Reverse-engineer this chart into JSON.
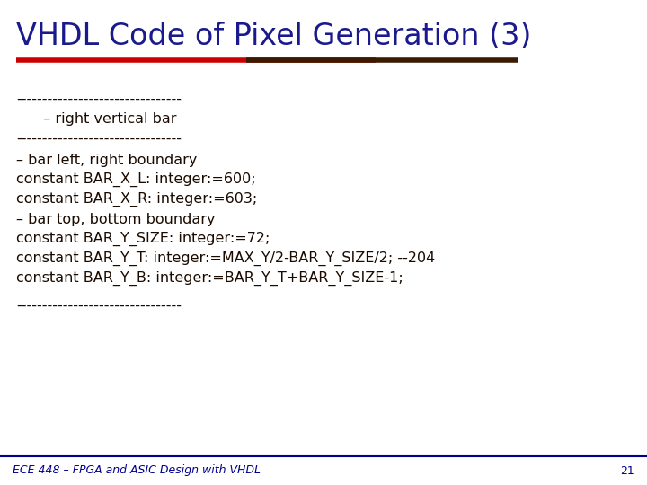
{
  "title": "VHDL Code of Pixel Generation (3)",
  "title_color": "#1a1a8c",
  "title_fontsize": 24,
  "bg_color": "#ffffff",
  "red_bar_color": "#cc0000",
  "dark_bar_color": "#3a1a00",
  "footer_line_color": "#00008b",
  "footer_text": "ECE 448 – FPGA and ASIC Design with VHDL",
  "footer_page": "21",
  "footer_color": "#00008b",
  "footer_fontsize": 9,
  "code_color": "#1a0a00",
  "code_fontsize": 11.5,
  "dash_line1": "--------------------------------",
  "comment1": "  – right vertical bar",
  "dash_line2": "--------------------------------",
  "comment2": "– bar left, right boundary",
  "line1": "constant BAR_X_L: integer:=600;",
  "line2": "constant BAR_X_R: integer:=603;",
  "comment3": "– bar top, bottom boundary",
  "line3": "constant BAR_Y_SIZE: integer:=72;",
  "line4": "constant BAR_Y_T: integer:=MAX_Y/2-BAR_Y_SIZE/2; --204",
  "line5": "constant BAR_Y_B: integer:=BAR_Y_T+BAR_Y_SIZE-1;",
  "dash_line3": "--------------------------------"
}
